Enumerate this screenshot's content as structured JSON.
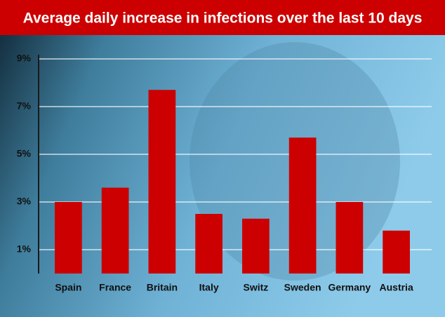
{
  "chart_data": {
    "type": "bar",
    "title": "Average daily increase in infections over the last 10 days",
    "categories": [
      "Spain",
      "France",
      "Britain",
      "Italy",
      "Switz",
      "Sweden",
      "Germany",
      "Austria"
    ],
    "values": [
      3.0,
      3.6,
      7.7,
      2.5,
      2.3,
      5.7,
      3.0,
      1.8
    ],
    "color": "#cc0000",
    "ylim": [
      0,
      9
    ],
    "yticks": [
      {
        "value": 1,
        "label": "1%"
      },
      {
        "value": 3,
        "label": "3%"
      },
      {
        "value": 5,
        "label": "5%"
      },
      {
        "value": 7,
        "label": "7%"
      },
      {
        "value": 9,
        "label": "9%"
      }
    ],
    "grid": true
  }
}
